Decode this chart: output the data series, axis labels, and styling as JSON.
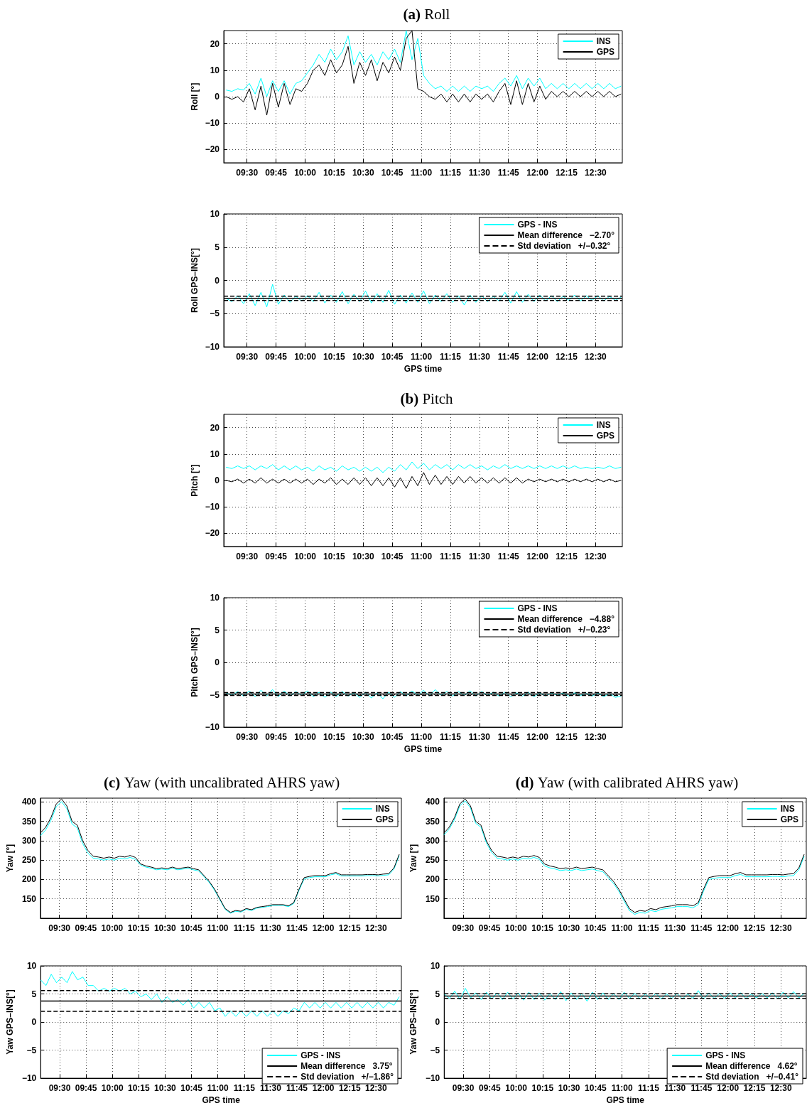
{
  "chart_data": [
    {
      "type": "line",
      "title": "(a) Roll",
      "ylabel": "Roll [°]",
      "grid": true,
      "legend": "top right",
      "marker": "none",
      "xlim": [
        9.3,
        12.73
      ],
      "ylim": [
        -25,
        25
      ],
      "yticks": [
        -20,
        -10,
        0,
        10,
        20
      ],
      "xticks": [
        {
          "value": 9.5,
          "label": "09:30"
        },
        {
          "value": 9.75,
          "label": "09:45"
        },
        {
          "value": 10,
          "label": "10:00"
        },
        {
          "value": 10.25,
          "label": "10:15"
        },
        {
          "value": 10.5,
          "label": "10:30"
        },
        {
          "value": 10.75,
          "label": "10:45"
        },
        {
          "value": 11,
          "label": "11:00"
        },
        {
          "value": 11.25,
          "label": "11:15"
        },
        {
          "value": 11.5,
          "label": "11:30"
        },
        {
          "value": 11.75,
          "label": "11:45"
        },
        {
          "value": 12,
          "label": "12:00"
        },
        {
          "value": 12.25,
          "label": "12:15"
        },
        {
          "value": 12.5,
          "label": "12:30"
        }
      ],
      "x": [
        9.32,
        9.37,
        9.42,
        9.47,
        9.52,
        9.57,
        9.62,
        9.67,
        9.72,
        9.77,
        9.82,
        9.87,
        9.92,
        9.97,
        10.02,
        10.07,
        10.12,
        10.17,
        10.22,
        10.27,
        10.32,
        10.37,
        10.42,
        10.47,
        10.52,
        10.57,
        10.62,
        10.67,
        10.72,
        10.77,
        10.82,
        10.87,
        10.92,
        10.97,
        11.02,
        11.07,
        11.12,
        11.17,
        11.22,
        11.27,
        11.32,
        11.37,
        11.42,
        11.47,
        11.52,
        11.57,
        11.62,
        11.67,
        11.72,
        11.77,
        11.82,
        11.87,
        11.92,
        11.97,
        12.02,
        12.07,
        12.12,
        12.17,
        12.22,
        12.27,
        12.32,
        12.37,
        12.42,
        12.47,
        12.52,
        12.57,
        12.62,
        12.67,
        12.72
      ],
      "series": [
        {
          "name": "INS",
          "color": "#00ffff",
          "values": [
            2.5,
            2,
            3,
            2.5,
            5,
            1,
            7,
            0,
            6,
            2,
            6,
            1,
            5,
            6,
            9,
            12,
            16,
            13,
            18,
            14,
            17,
            23,
            12,
            17,
            13,
            16,
            12,
            17,
            14,
            18,
            13,
            25,
            14,
            22,
            8,
            5,
            3,
            4,
            2,
            4,
            2,
            4,
            2,
            4,
            3,
            4,
            2,
            5,
            7,
            4,
            8,
            3,
            7,
            4,
            7,
            3,
            5,
            3,
            5,
            3,
            5,
            3,
            5,
            3,
            5,
            3,
            5,
            3,
            4
          ]
        },
        {
          "name": "GPS",
          "color": "#000000",
          "values": [
            0,
            -1,
            0,
            -2,
            3,
            -5,
            4,
            -7,
            5,
            -4,
            5,
            -3,
            3,
            2,
            5,
            10,
            12,
            8,
            14,
            9,
            12,
            19,
            5,
            13,
            8,
            14,
            6,
            13,
            9,
            15,
            10,
            22,
            25,
            3,
            2,
            0,
            -1,
            1,
            -2,
            1,
            -2,
            1,
            -2,
            1,
            -1,
            1,
            -2,
            2,
            5,
            -3,
            6,
            -3,
            5,
            -2,
            4,
            -1,
            2,
            0,
            2,
            0,
            2,
            0,
            2,
            0,
            2,
            0,
            2,
            0,
            1
          ]
        }
      ]
    },
    {
      "type": "line",
      "ylabel": "Roll GPS–INS[°]",
      "xlabel": "GPS time",
      "grid": true,
      "legend": "top right",
      "marker": "none",
      "xlim": [
        9.3,
        12.73
      ],
      "ylim": [
        -10,
        10
      ],
      "yticks": [
        -10,
        -5,
        0,
        5,
        10
      ],
      "xticks": [
        {
          "value": 9.5,
          "label": "09:30"
        },
        {
          "value": 9.75,
          "label": "09:45"
        },
        {
          "value": 10,
          "label": "10:00"
        },
        {
          "value": 10.25,
          "label": "10:15"
        },
        {
          "value": 10.5,
          "label": "10:30"
        },
        {
          "value": 10.75,
          "label": "10:45"
        },
        {
          "value": 11,
          "label": "11:00"
        },
        {
          "value": 11.25,
          "label": "11:15"
        },
        {
          "value": 11.5,
          "label": "11:30"
        },
        {
          "value": 11.75,
          "label": "11:45"
        },
        {
          "value": 12,
          "label": "12:00"
        },
        {
          "value": 12.25,
          "label": "12:15"
        },
        {
          "value": 12.5,
          "label": "12:30"
        }
      ],
      "x": [
        9.32,
        9.37,
        9.42,
        9.47,
        9.52,
        9.57,
        9.62,
        9.67,
        9.72,
        9.77,
        9.82,
        9.87,
        9.92,
        9.97,
        10.02,
        10.07,
        10.12,
        10.17,
        10.22,
        10.27,
        10.32,
        10.37,
        10.42,
        10.47,
        10.52,
        10.57,
        10.62,
        10.67,
        10.72,
        10.77,
        10.82,
        10.87,
        10.92,
        10.97,
        11.02,
        11.07,
        11.12,
        11.17,
        11.22,
        11.27,
        11.32,
        11.37,
        11.42,
        11.47,
        11.52,
        11.57,
        11.62,
        11.67,
        11.72,
        11.77,
        11.82,
        11.87,
        11.92,
        11.97,
        12.02,
        12.07,
        12.12,
        12.17,
        12.22,
        12.27,
        12.32,
        12.37,
        12.42,
        12.47,
        12.52,
        12.57,
        12.62,
        12.67,
        12.72
      ],
      "series": [
        {
          "name": "GPS - INS",
          "color": "#00ffff",
          "values": [
            -2.7,
            -3.2,
            -2.3,
            -3.5,
            -2,
            -3.8,
            -1.8,
            -4,
            -0.6,
            -3.6,
            -2.2,
            -3.3,
            -2.4,
            -3.1,
            -2.3,
            -3.2,
            -1.8,
            -3.4,
            -2.2,
            -3.3,
            -1.7,
            -3.5,
            -2.1,
            -3.2,
            -1.6,
            -3.4,
            -2,
            -3.3,
            -1.5,
            -3.6,
            -2.2,
            -3.4,
            -1.9,
            -3.3,
            -1.6,
            -3.5,
            -2.2,
            -3.2,
            -2,
            -3.3,
            -2.3,
            -3.7,
            -2.2,
            -3.3,
            -2.3,
            -3.2,
            -2.4,
            -3.1,
            -1.8,
            -3.4,
            -1.7,
            -3.3,
            -2.1,
            -3.2,
            -2.2,
            -3.1,
            -2.3,
            -3.2,
            -2.4,
            -3.0,
            -2.2,
            -3.1,
            -2.3,
            -3.0,
            -2.3,
            -3.1,
            -2.4,
            -3.0,
            -2.5
          ]
        }
      ],
      "ref_lines": [
        {
          "axis": "y",
          "value": -2.7,
          "label": "Mean difference   −2.70°",
          "color": "#000000",
          "line_style": "solid"
        },
        {
          "axis": "y",
          "value": -2.38,
          "label": "Std deviation   +/−0.32°",
          "color": "#000000",
          "line_style": "dashed"
        },
        {
          "axis": "y",
          "value": -3.02,
          "color": "#000000",
          "line_style": "dashed"
        }
      ]
    },
    {
      "type": "line",
      "title": "(b) Pitch",
      "ylabel": "Pitch [°]",
      "grid": true,
      "legend": "top right",
      "marker": "none",
      "xlim": [
        9.3,
        12.73
      ],
      "ylim": [
        -25,
        25
      ],
      "yticks": [
        -20,
        -10,
        0,
        10,
        20
      ],
      "xticks": [
        {
          "value": 9.5,
          "label": "09:30"
        },
        {
          "value": 9.75,
          "label": "09:45"
        },
        {
          "value": 10,
          "label": "10:00"
        },
        {
          "value": 10.25,
          "label": "10:15"
        },
        {
          "value": 10.5,
          "label": "10:30"
        },
        {
          "value": 10.75,
          "label": "10:45"
        },
        {
          "value": 11,
          "label": "11:00"
        },
        {
          "value": 11.25,
          "label": "11:15"
        },
        {
          "value": 11.5,
          "label": "11:30"
        },
        {
          "value": 11.75,
          "label": "11:45"
        },
        {
          "value": 12,
          "label": "12:00"
        },
        {
          "value": 12.25,
          "label": "12:15"
        },
        {
          "value": 12.5,
          "label": "12:30"
        }
      ],
      "x": [
        9.32,
        9.37,
        9.42,
        9.47,
        9.52,
        9.57,
        9.62,
        9.67,
        9.72,
        9.77,
        9.82,
        9.87,
        9.92,
        9.97,
        10.02,
        10.07,
        10.12,
        10.17,
        10.22,
        10.27,
        10.32,
        10.37,
        10.42,
        10.47,
        10.52,
        10.57,
        10.62,
        10.67,
        10.72,
        10.77,
        10.82,
        10.87,
        10.92,
        10.97,
        11.02,
        11.07,
        11.12,
        11.17,
        11.22,
        11.27,
        11.32,
        11.37,
        11.42,
        11.47,
        11.52,
        11.57,
        11.62,
        11.67,
        11.72,
        11.77,
        11.82,
        11.87,
        11.92,
        11.97,
        12.02,
        12.07,
        12.12,
        12.17,
        12.22,
        12.27,
        12.32,
        12.37,
        12.42,
        12.47,
        12.52,
        12.57,
        12.62,
        12.67,
        12.72
      ],
      "series": [
        {
          "name": "INS",
          "color": "#00ffff",
          "values": [
            5,
            4.5,
            5.5,
            4.5,
            5.5,
            4,
            5.5,
            4.5,
            6,
            4,
            5.5,
            4,
            5.5,
            4,
            5,
            3.5,
            5.5,
            4,
            5,
            3.5,
            5.5,
            4,
            5,
            3.5,
            5,
            3.5,
            5,
            3,
            5,
            3.5,
            6,
            4,
            7,
            4.5,
            6.5,
            4,
            6,
            4.5,
            6,
            4,
            6,
            4.5,
            6,
            4.5,
            5.5,
            4,
            5.5,
            4.5,
            6,
            4.5,
            5.5,
            4.5,
            5.5,
            4.5,
            5.5,
            4.5,
            5.5,
            4.5,
            5.5,
            4.5,
            5.5,
            4.5,
            5,
            4.5,
            5,
            4.5,
            5.5,
            4.5,
            5
          ]
        },
        {
          "name": "GPS",
          "color": "#000000",
          "values": [
            0,
            -0.5,
            0.5,
            -1,
            0.5,
            -1,
            1,
            -1,
            0.5,
            -1,
            0.5,
            -1,
            0.5,
            -1,
            0.5,
            -1.5,
            0.5,
            -1,
            1,
            -1.5,
            0.5,
            -1.5,
            1,
            -1.5,
            1,
            -2,
            1,
            -2,
            1,
            -2.5,
            1,
            -3,
            1.5,
            -2,
            3,
            -1.5,
            2,
            -1.5,
            1.5,
            -1.5,
            1.5,
            -1,
            1.5,
            -1,
            1,
            -1,
            1,
            -1,
            1,
            -1,
            1,
            -1,
            0.5,
            -0.5,
            0.5,
            -0.5,
            0.5,
            -0.5,
            0.5,
            -0.5,
            0.5,
            -0.5,
            0.5,
            -0.5,
            0.5,
            -0.5,
            0.5,
            -0.5,
            0
          ]
        }
      ]
    },
    {
      "type": "line",
      "ylabel": "Pitch GPS–INS[°]",
      "xlabel": "GPS time",
      "grid": true,
      "legend": "top right",
      "marker": "none",
      "xlim": [
        9.3,
        12.73
      ],
      "ylim": [
        -10,
        10
      ],
      "yticks": [
        -10,
        -5,
        0,
        5,
        10
      ],
      "xticks": [
        {
          "value": 9.5,
          "label": "09:30"
        },
        {
          "value": 9.75,
          "label": "09:45"
        },
        {
          "value": 10,
          "label": "10:00"
        },
        {
          "value": 10.25,
          "label": "10:15"
        },
        {
          "value": 10.5,
          "label": "10:30"
        },
        {
          "value": 10.75,
          "label": "10:45"
        },
        {
          "value": 11,
          "label": "11:00"
        },
        {
          "value": 11.25,
          "label": "11:15"
        },
        {
          "value": 11.5,
          "label": "11:30"
        },
        {
          "value": 11.75,
          "label": "11:45"
        },
        {
          "value": 12,
          "label": "12:00"
        },
        {
          "value": 12.25,
          "label": "12:15"
        },
        {
          "value": 12.5,
          "label": "12:30"
        }
      ],
      "x": [
        9.32,
        9.37,
        9.42,
        9.47,
        9.52,
        9.57,
        9.62,
        9.67,
        9.72,
        9.77,
        9.82,
        9.87,
        9.92,
        9.97,
        10.02,
        10.07,
        10.12,
        10.17,
        10.22,
        10.27,
        10.32,
        10.37,
        10.42,
        10.47,
        10.52,
        10.57,
        10.62,
        10.67,
        10.72,
        10.77,
        10.82,
        10.87,
        10.92,
        10.97,
        11.02,
        11.07,
        11.12,
        11.17,
        11.22,
        11.27,
        11.32,
        11.37,
        11.42,
        11.47,
        11.52,
        11.57,
        11.62,
        11.67,
        11.72,
        11.77,
        11.82,
        11.87,
        11.92,
        11.97,
        12.02,
        12.07,
        12.12,
        12.17,
        12.22,
        12.27,
        12.32,
        12.37,
        12.42,
        12.47,
        12.52,
        12.57,
        12.62,
        12.67,
        12.72
      ],
      "series": [
        {
          "name": "GPS - INS",
          "color": "#00ffff",
          "values": [
            -4.7,
            -5.1,
            -4.5,
            -5.2,
            -4.4,
            -5.3,
            -4.3,
            -5.2,
            -4.2,
            -5.3,
            -4.4,
            -5.2,
            -4.5,
            -5.1,
            -4.4,
            -5.3,
            -4.6,
            -5.4,
            -4.6,
            -5.3,
            -4.5,
            -5.2,
            -4.7,
            -5.4,
            -4.6,
            -5.5,
            -4.7,
            -5.6,
            -4.6,
            -5.4,
            -4.5,
            -5.2,
            -4.4,
            -5.1,
            -4.3,
            -5.2,
            -4.2,
            -5.1,
            -4.5,
            -5.2,
            -4.5,
            -5.1,
            -4.4,
            -5.2,
            -4.5,
            -5.1,
            -4.6,
            -5.2,
            -4.6,
            -5.3,
            -4.7,
            -5.2,
            -4.6,
            -5.3,
            -4.7,
            -5.2,
            -4.7,
            -5.1,
            -4.7,
            -5.2,
            -4.7,
            -5.1,
            -4.8,
            -5.2,
            -4.7,
            -5.3,
            -4.8,
            -5.4,
            -5.2
          ]
        }
      ],
      "ref_lines": [
        {
          "axis": "y",
          "value": -4.88,
          "label": "Mean difference   −4.88°",
          "color": "#000000",
          "line_style": "solid"
        },
        {
          "axis": "y",
          "value": -4.65,
          "label": "Std deviation   +/−0.23°",
          "color": "#000000",
          "line_style": "dashed"
        },
        {
          "axis": "y",
          "value": -5.11,
          "color": "#000000",
          "line_style": "dashed"
        }
      ]
    },
    {
      "type": "line",
      "title": "(c) Yaw (with uncalibrated AHRS yaw)",
      "ylabel": "Yaw [°]",
      "grid": true,
      "legend": "top right",
      "marker": "none",
      "xlim": [
        9.32,
        12.74
      ],
      "ylim": [
        100,
        410
      ],
      "yticks": [
        150,
        200,
        250,
        300,
        350,
        400
      ],
      "xticks": [
        {
          "value": 9.5,
          "label": "09:30"
        },
        {
          "value": 9.75,
          "label": "09:45"
        },
        {
          "value": 10,
          "label": "10:00"
        },
        {
          "value": 10.25,
          "label": "10:15"
        },
        {
          "value": 10.5,
          "label": "10:30"
        },
        {
          "value": 10.75,
          "label": "10:45"
        },
        {
          "value": 11,
          "label": "11:00"
        },
        {
          "value": 11.25,
          "label": "11:15"
        },
        {
          "value": 11.5,
          "label": "11:30"
        },
        {
          "value": 11.75,
          "label": "11:45"
        },
        {
          "value": 12,
          "label": "12:00"
        },
        {
          "value": 12.25,
          "label": "12:15"
        },
        {
          "value": 12.5,
          "label": "12:30"
        }
      ],
      "x": [
        9.32,
        9.37,
        9.42,
        9.47,
        9.52,
        9.57,
        9.62,
        9.67,
        9.72,
        9.77,
        9.82,
        9.87,
        9.92,
        9.97,
        10.02,
        10.07,
        10.12,
        10.17,
        10.22,
        10.27,
        10.32,
        10.37,
        10.42,
        10.47,
        10.52,
        10.57,
        10.62,
        10.67,
        10.72,
        10.77,
        10.82,
        10.87,
        10.92,
        10.97,
        11.02,
        11.07,
        11.12,
        11.17,
        11.22,
        11.27,
        11.32,
        11.37,
        11.42,
        11.47,
        11.52,
        11.57,
        11.62,
        11.67,
        11.72,
        11.77,
        11.82,
        11.87,
        11.92,
        11.97,
        12.02,
        12.07,
        12.12,
        12.17,
        12.22,
        12.27,
        12.32,
        12.37,
        12.42,
        12.47,
        12.52,
        12.57,
        12.62,
        12.67,
        12.72
      ],
      "series": [
        {
          "name": "INS",
          "color": "#00ffff",
          "values": [
            313,
            328,
            353,
            388,
            401,
            383,
            343,
            333,
            293,
            268,
            255,
            253,
            250,
            253,
            250,
            255,
            253,
            257,
            252,
            237,
            232,
            229,
            225,
            227,
            225,
            229,
            225,
            227,
            229,
            225,
            222,
            207,
            192,
            172,
            148,
            123,
            113,
            118,
            116,
            123,
            120,
            126,
            128,
            130,
            133,
            133,
            133,
            130,
            138,
            172,
            202,
            205,
            207,
            207,
            207,
            212,
            215,
            209,
            209,
            209,
            209,
            209,
            210,
            210,
            209,
            211,
            212,
            227,
            262
          ]
        },
        {
          "name": "GPS",
          "color": "#000000",
          "values": [
            320,
            335,
            360,
            395,
            408,
            390,
            350,
            340,
            300,
            275,
            260,
            258,
            255,
            258,
            255,
            260,
            258,
            262,
            257,
            240,
            235,
            232,
            228,
            230,
            228,
            232,
            228,
            230,
            232,
            228,
            225,
            210,
            195,
            175,
            150,
            125,
            115,
            120,
            118,
            125,
            122,
            128,
            130,
            132,
            135,
            135,
            135,
            132,
            140,
            175,
            205,
            208,
            210,
            210,
            210,
            215,
            218,
            212,
            212,
            212,
            212,
            212,
            213,
            213,
            212,
            214,
            215,
            230,
            265
          ]
        }
      ]
    },
    {
      "type": "line",
      "ylabel": "Yaw GPS–INS[°]",
      "xlabel": "GPS time",
      "grid": true,
      "legend": "bottom right",
      "marker": "none",
      "xlim": [
        9.32,
        12.74
      ],
      "ylim": [
        -10,
        10
      ],
      "yticks": [
        -10,
        -5,
        0,
        5,
        10
      ],
      "xticks": [
        {
          "value": 9.5,
          "label": "09:30"
        },
        {
          "value": 9.75,
          "label": "09:45"
        },
        {
          "value": 10,
          "label": "10:00"
        },
        {
          "value": 10.25,
          "label": "10:15"
        },
        {
          "value": 10.5,
          "label": "10:30"
        },
        {
          "value": 10.75,
          "label": "10:45"
        },
        {
          "value": 11,
          "label": "11:00"
        },
        {
          "value": 11.25,
          "label": "11:15"
        },
        {
          "value": 11.5,
          "label": "11:30"
        },
        {
          "value": 11.75,
          "label": "11:45"
        },
        {
          "value": 12,
          "label": "12:00"
        },
        {
          "value": 12.25,
          "label": "12:15"
        },
        {
          "value": 12.5,
          "label": "12:30"
        }
      ],
      "x": [
        9.32,
        9.37,
        9.42,
        9.47,
        9.52,
        9.57,
        9.62,
        9.67,
        9.72,
        9.77,
        9.82,
        9.87,
        9.92,
        9.97,
        10.02,
        10.07,
        10.12,
        10.17,
        10.22,
        10.27,
        10.32,
        10.37,
        10.42,
        10.47,
        10.52,
        10.57,
        10.62,
        10.67,
        10.72,
        10.77,
        10.82,
        10.87,
        10.92,
        10.97,
        11.02,
        11.07,
        11.12,
        11.17,
        11.22,
        11.27,
        11.32,
        11.37,
        11.42,
        11.47,
        11.52,
        11.57,
        11.62,
        11.67,
        11.72,
        11.77,
        11.82,
        11.87,
        11.92,
        11.97,
        12.02,
        12.07,
        12.12,
        12.17,
        12.22,
        12.27,
        12.32,
        12.37,
        12.42,
        12.47,
        12.52,
        12.57,
        12.62,
        12.67,
        12.72
      ],
      "series": [
        {
          "name": "GPS - INS",
          "color": "#00ffff",
          "values": [
            7.5,
            6.5,
            8.5,
            7,
            8,
            7,
            9,
            7.5,
            8,
            6.5,
            6.5,
            5.5,
            6,
            5.5,
            6,
            5.5,
            6,
            5,
            5.5,
            4.5,
            5,
            4,
            5,
            3.5,
            4.5,
            3.5,
            4,
            3,
            4,
            2.5,
            3.5,
            2.5,
            3.5,
            2,
            2.5,
            1,
            2,
            1,
            2,
            1,
            2,
            1,
            2,
            1,
            2,
            1,
            2,
            1.5,
            2.5,
            2,
            3.5,
            2.5,
            3.5,
            2.5,
            3.5,
            2.5,
            3.5,
            2.5,
            3.5,
            2.5,
            3.5,
            2.5,
            3.5,
            2.5,
            3.5,
            2.5,
            3.5,
            3,
            4.5
          ]
        }
      ],
      "ref_lines": [
        {
          "axis": "y",
          "value": 3.75,
          "label": "Mean difference   3.75°",
          "color": "#000000",
          "line_style": "solid"
        },
        {
          "axis": "y",
          "value": 5.61,
          "label": "Std deviation   +/−1.86°",
          "color": "#000000",
          "line_style": "dashed"
        },
        {
          "axis": "y",
          "value": 1.89,
          "color": "#000000",
          "line_style": "dashed"
        }
      ]
    },
    {
      "type": "line",
      "title": "(d) Yaw (with calibrated AHRS yaw)",
      "ylabel": "Yaw [°]",
      "grid": true,
      "legend": "top right",
      "marker": "none",
      "xlim": [
        9.32,
        12.74
      ],
      "ylim": [
        100,
        410
      ],
      "yticks": [
        150,
        200,
        250,
        300,
        350,
        400
      ],
      "xticks": [
        {
          "value": 9.5,
          "label": "09:30"
        },
        {
          "value": 9.75,
          "label": "09:45"
        },
        {
          "value": 10,
          "label": "10:00"
        },
        {
          "value": 10.25,
          "label": "10:15"
        },
        {
          "value": 10.5,
          "label": "10:30"
        },
        {
          "value": 10.75,
          "label": "10:45"
        },
        {
          "value": 11,
          "label": "11:00"
        },
        {
          "value": 11.25,
          "label": "11:15"
        },
        {
          "value": 11.5,
          "label": "11:30"
        },
        {
          "value": 11.75,
          "label": "11:45"
        },
        {
          "value": 12,
          "label": "12:00"
        },
        {
          "value": 12.25,
          "label": "12:15"
        },
        {
          "value": 12.5,
          "label": "12:30"
        }
      ],
      "x": [
        9.32,
        9.37,
        9.42,
        9.47,
        9.52,
        9.57,
        9.62,
        9.67,
        9.72,
        9.77,
        9.82,
        9.87,
        9.92,
        9.97,
        10.02,
        10.07,
        10.12,
        10.17,
        10.22,
        10.27,
        10.32,
        10.37,
        10.42,
        10.47,
        10.52,
        10.57,
        10.62,
        10.67,
        10.72,
        10.77,
        10.82,
        10.87,
        10.92,
        10.97,
        11.02,
        11.07,
        11.12,
        11.17,
        11.22,
        11.27,
        11.32,
        11.37,
        11.42,
        11.47,
        11.52,
        11.57,
        11.62,
        11.67,
        11.72,
        11.77,
        11.82,
        11.87,
        11.92,
        11.97,
        12.02,
        12.07,
        12.12,
        12.17,
        12.22,
        12.27,
        12.32,
        12.37,
        12.42,
        12.47,
        12.52,
        12.57,
        12.62,
        12.67,
        12.72
      ],
      "series": [
        {
          "name": "INS",
          "color": "#00ffff",
          "values": [
            315,
            330,
            355,
            390,
            403,
            385,
            345,
            335,
            295,
            270,
            255,
            253,
            250,
            253,
            250,
            255,
            253,
            257,
            252,
            235,
            230,
            227,
            223,
            225,
            223,
            227,
            223,
            225,
            227,
            223,
            220,
            205,
            190,
            170,
            145,
            120,
            110,
            115,
            113,
            120,
            117,
            123,
            125,
            127,
            130,
            130,
            130,
            127,
            135,
            170,
            200,
            203,
            205,
            205,
            205,
            210,
            213,
            207,
            207,
            207,
            207,
            207,
            208,
            208,
            207,
            209,
            210,
            225,
            260
          ]
        },
        {
          "name": "GPS",
          "color": "#000000",
          "values": [
            320,
            335,
            360,
            395,
            408,
            390,
            350,
            340,
            300,
            275,
            260,
            258,
            255,
            258,
            255,
            260,
            258,
            262,
            257,
            240,
            235,
            232,
            228,
            230,
            228,
            232,
            228,
            230,
            232,
            228,
            225,
            210,
            195,
            175,
            150,
            125,
            115,
            120,
            118,
            125,
            122,
            128,
            130,
            132,
            135,
            135,
            135,
            132,
            140,
            175,
            205,
            208,
            210,
            210,
            210,
            215,
            218,
            212,
            212,
            212,
            212,
            212,
            213,
            213,
            212,
            214,
            215,
            230,
            265
          ]
        }
      ]
    },
    {
      "type": "line",
      "ylabel": "Yaw GPS–INS[°]",
      "xlabel": "GPS time",
      "grid": true,
      "legend": "bottom right",
      "marker": "none",
      "xlim": [
        9.32,
        12.74
      ],
      "ylim": [
        -10,
        10
      ],
      "yticks": [
        -10,
        -5,
        0,
        5,
        10
      ],
      "xticks": [
        {
          "value": 9.5,
          "label": "09:30"
        },
        {
          "value": 9.75,
          "label": "09:45"
        },
        {
          "value": 10,
          "label": "10:00"
        },
        {
          "value": 10.25,
          "label": "10:15"
        },
        {
          "value": 10.5,
          "label": "10:30"
        },
        {
          "value": 10.75,
          "label": "10:45"
        },
        {
          "value": 11,
          "label": "11:00"
        },
        {
          "value": 11.25,
          "label": "11:15"
        },
        {
          "value": 11.5,
          "label": "11:30"
        },
        {
          "value": 11.75,
          "label": "11:45"
        },
        {
          "value": 12,
          "label": "12:00"
        },
        {
          "value": 12.25,
          "label": "12:15"
        },
        {
          "value": 12.5,
          "label": "12:30"
        }
      ],
      "x": [
        9.32,
        9.37,
        9.42,
        9.47,
        9.52,
        9.57,
        9.62,
        9.67,
        9.72,
        9.77,
        9.82,
        9.87,
        9.92,
        9.97,
        10.02,
        10.07,
        10.12,
        10.17,
        10.22,
        10.27,
        10.32,
        10.37,
        10.42,
        10.47,
        10.52,
        10.57,
        10.62,
        10.67,
        10.72,
        10.77,
        10.82,
        10.87,
        10.92,
        10.97,
        11.02,
        11.07,
        11.12,
        11.17,
        11.22,
        11.27,
        11.32,
        11.37,
        11.42,
        11.47,
        11.52,
        11.57,
        11.62,
        11.67,
        11.72,
        11.77,
        11.82,
        11.87,
        11.92,
        11.97,
        12.02,
        12.07,
        12.12,
        12.17,
        12.22,
        12.27,
        12.32,
        12.37,
        12.42,
        12.47,
        12.52,
        12.57,
        12.62,
        12.67,
        12.72
      ],
      "series": [
        {
          "name": "GPS - INS",
          "color": "#00ffff",
          "values": [
            5,
            4.2,
            5.5,
            4,
            6,
            4.3,
            5.2,
            4,
            5.3,
            4.1,
            5.2,
            4,
            5.3,
            4.1,
            5.2,
            3.9,
            5.3,
            4,
            5.2,
            3.9,
            5.1,
            4,
            5.4,
            3.8,
            5.2,
            4,
            5.1,
            3.7,
            5.3,
            4,
            5.2,
            4,
            5.1,
            4,
            5.3,
            4.2,
            5.1,
            4.1,
            5,
            4.2,
            5.1,
            4.1,
            5,
            4.2,
            5.1,
            4.1,
            5,
            4.2,
            5.6,
            4.1,
            5.2,
            4.2,
            5.1,
            4.2,
            5.2,
            4.3,
            5.2,
            4.2,
            5,
            4.3,
            5.1,
            4.3,
            5.2,
            4.2,
            5.3,
            4.3,
            5.4,
            4.3,
            5.1
          ]
        }
      ],
      "ref_lines": [
        {
          "axis": "y",
          "value": 4.62,
          "label": "Mean difference   4.62°",
          "color": "#000000",
          "line_style": "solid"
        },
        {
          "axis": "y",
          "value": 5.03,
          "label": "Std deviation   +/−0.41°",
          "color": "#000000",
          "line_style": "dashed"
        },
        {
          "axis": "y",
          "value": 4.21,
          "color": "#000000",
          "line_style": "dashed"
        }
      ]
    }
  ]
}
